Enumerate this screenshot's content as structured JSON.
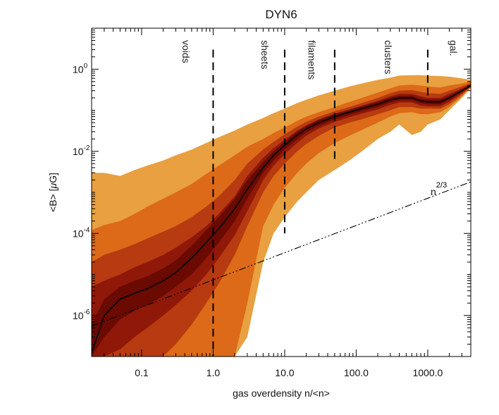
{
  "chart_data": {
    "type": "area",
    "title": "DYN6",
    "xlabel": "gas overdensity n/<n>",
    "ylabel_plain": "<B> [",
    "ylabel_mu": "μ",
    "ylabel_unit": "G]",
    "x_scale": "log",
    "y_scale": "log",
    "xlim": [
      0.02,
      4000
    ],
    "ylim": [
      1e-07,
      10
    ],
    "x_tick_values": [
      0.1,
      1,
      10,
      100,
      1000
    ],
    "x_tick_labels": [
      "0.1",
      "1.0",
      "10.0",
      "100.0",
      "1000.0"
    ],
    "y_tick_values": [
      1e-06,
      0.0001,
      0.01,
      1
    ],
    "y_tick_base": "10",
    "y_tick_exponents": [
      "-6",
      "-4",
      "-2",
      "0"
    ],
    "x": [
      0.02,
      0.03,
      0.05,
      0.08,
      0.12,
      0.2,
      0.3,
      0.5,
      0.8,
      1.2,
      2,
      3,
      5,
      7,
      10,
      15,
      20,
      30,
      50,
      80,
      120,
      200,
      300,
      400,
      600,
      800,
      1000,
      1500,
      2000,
      3000,
      4000
    ],
    "median": [
      1.2e-07,
      1e-06,
      2.5e-06,
      3.5e-06,
      4.5e-06,
      7e-06,
      1.1e-05,
      2.5e-05,
      6e-05,
      0.00013,
      0.0004,
      0.0012,
      0.004,
      0.008,
      0.014,
      0.025,
      0.035,
      0.05,
      0.07,
      0.09,
      0.11,
      0.14,
      0.18,
      0.2,
      0.2,
      0.17,
      0.16,
      0.16,
      0.2,
      0.3,
      0.4
    ],
    "bands": [
      {
        "name": "outermost",
        "color": "#e8a040",
        "lower": [
          1e-07,
          1e-07,
          1e-07,
          1e-07,
          1e-07,
          1e-07,
          1e-07,
          1e-07,
          1e-07,
          1e-07,
          1e-07,
          3e-07,
          2e-05,
          0.0001,
          0.00025,
          0.0006,
          0.001,
          0.002,
          0.0035,
          0.006,
          0.01,
          0.02,
          0.03,
          0.045,
          0.025,
          0.03,
          0.045,
          0.06,
          0.1,
          0.2,
          0.35
        ],
        "upper": [
          0.003,
          0.003,
          0.0025,
          0.0035,
          0.0045,
          0.006,
          0.008,
          0.011,
          0.016,
          0.022,
          0.032,
          0.045,
          0.065,
          0.085,
          0.11,
          0.15,
          0.18,
          0.23,
          0.3,
          0.38,
          0.45,
          0.55,
          0.62,
          0.7,
          0.72,
          0.72,
          0.7,
          0.68,
          0.66,
          0.6,
          0.55
        ]
      },
      {
        "name": "outer",
        "color": "#dc6a18",
        "lower": [
          1e-07,
          1e-07,
          1e-07,
          1e-07,
          1e-07,
          1e-07,
          1e-07,
          1e-07,
          1e-07,
          1e-07,
          1e-07,
          2e-06,
          0.00015,
          0.0005,
          0.0013,
          0.003,
          0.005,
          0.009,
          0.016,
          0.024,
          0.033,
          0.05,
          0.07,
          0.085,
          0.09,
          0.08,
          0.08,
          0.09,
          0.12,
          0.22,
          0.36
        ],
        "upper": [
          0.00012,
          0.00016,
          0.0002,
          0.0003,
          0.00045,
          0.0007,
          0.001,
          0.0016,
          0.0028,
          0.0045,
          0.008,
          0.013,
          0.02,
          0.028,
          0.038,
          0.055,
          0.07,
          0.09,
          0.12,
          0.16,
          0.2,
          0.27,
          0.34,
          0.4,
          0.42,
          0.4,
          0.38,
          0.36,
          0.4,
          0.45,
          0.5
        ]
      },
      {
        "name": "middle",
        "color": "#b83a10",
        "lower": [
          1e-07,
          1e-07,
          1e-07,
          1e-07,
          1e-07,
          1e-07,
          2e-07,
          6e-07,
          2e-06,
          6e-06,
          3e-05,
          0.00015,
          0.001,
          0.0025,
          0.005,
          0.01,
          0.015,
          0.024,
          0.038,
          0.05,
          0.06,
          0.08,
          0.1,
          0.12,
          0.12,
          0.11,
          0.11,
          0.11,
          0.14,
          0.24,
          0.37
        ],
        "upper": [
          2e-05,
          3e-05,
          4e-05,
          5.5e-05,
          7.5e-05,
          0.00011,
          0.00015,
          0.00025,
          0.00045,
          0.0008,
          0.002,
          0.005,
          0.011,
          0.017,
          0.026,
          0.04,
          0.052,
          0.07,
          0.095,
          0.12,
          0.15,
          0.2,
          0.26,
          0.3,
          0.31,
          0.28,
          0.26,
          0.25,
          0.3,
          0.38,
          0.46
        ]
      },
      {
        "name": "inner",
        "color": "#901808",
        "lower": [
          1e-07,
          1e-07,
          1.5e-07,
          3e-07,
          5e-07,
          1e-06,
          1.8e-06,
          4e-06,
          1e-05,
          2.5e-05,
          9e-05,
          0.00035,
          0.002,
          0.0045,
          0.0085,
          0.016,
          0.024,
          0.036,
          0.052,
          0.068,
          0.083,
          0.105,
          0.135,
          0.155,
          0.155,
          0.13,
          0.125,
          0.125,
          0.16,
          0.26,
          0.38
        ],
        "upper": [
          5e-06,
          7e-06,
          1e-05,
          1.5e-05,
          2e-05,
          3e-05,
          4.5e-05,
          8e-05,
          0.00015,
          0.0003,
          0.0008,
          0.0025,
          0.007,
          0.012,
          0.019,
          0.032,
          0.043,
          0.06,
          0.083,
          0.105,
          0.13,
          0.17,
          0.22,
          0.25,
          0.25,
          0.22,
          0.2,
          0.2,
          0.25,
          0.34,
          0.43
        ]
      },
      {
        "name": "core",
        "color": "#6a0a00",
        "lower": [
          1e-07,
          3e-07,
          8e-07,
          1.3e-06,
          1.8e-06,
          3e-06,
          5e-06,
          1e-05,
          2.5e-05,
          6e-05,
          0.0002,
          0.0007,
          0.003,
          0.006,
          0.011,
          0.02,
          0.029,
          0.042,
          0.06,
          0.078,
          0.095,
          0.12,
          0.155,
          0.175,
          0.175,
          0.15,
          0.14,
          0.14,
          0.18,
          0.28,
          0.39
        ],
        "upper": [
          6e-07,
          2.5e-06,
          5e-06,
          7e-06,
          9e-06,
          1.4e-05,
          2.2e-05,
          5e-05,
          0.00012,
          0.00025,
          0.0007,
          0.002,
          0.0055,
          0.01,
          0.017,
          0.03,
          0.041,
          0.058,
          0.08,
          0.1,
          0.125,
          0.16,
          0.2,
          0.225,
          0.225,
          0.19,
          0.18,
          0.18,
          0.22,
          0.32,
          0.42
        ]
      }
    ],
    "reference_line": {
      "label_base": "n",
      "label_exponent": "2/3",
      "x": [
        0.02,
        4000
      ],
      "y": [
        5.5e-07,
        0.0018
      ]
    },
    "vertical_lines": [
      {
        "x": 1,
        "y_range": [
          1e-07,
          3
        ]
      },
      {
        "x": 10,
        "y_range": [
          0.0001,
          3
        ]
      },
      {
        "x": 50,
        "y_range": [
          0.005,
          3
        ]
      },
      {
        "x": 1000,
        "y_range": [
          0.2,
          3
        ]
      }
    ],
    "region_labels": [
      {
        "text": "voids",
        "x": 0.42
      },
      {
        "text": "sheets",
        "x": 5.3
      },
      {
        "text": "filaments",
        "x": 24
      },
      {
        "text": "clusters",
        "x": 280
      },
      {
        "text": "gal.",
        "x": 2300
      }
    ]
  }
}
